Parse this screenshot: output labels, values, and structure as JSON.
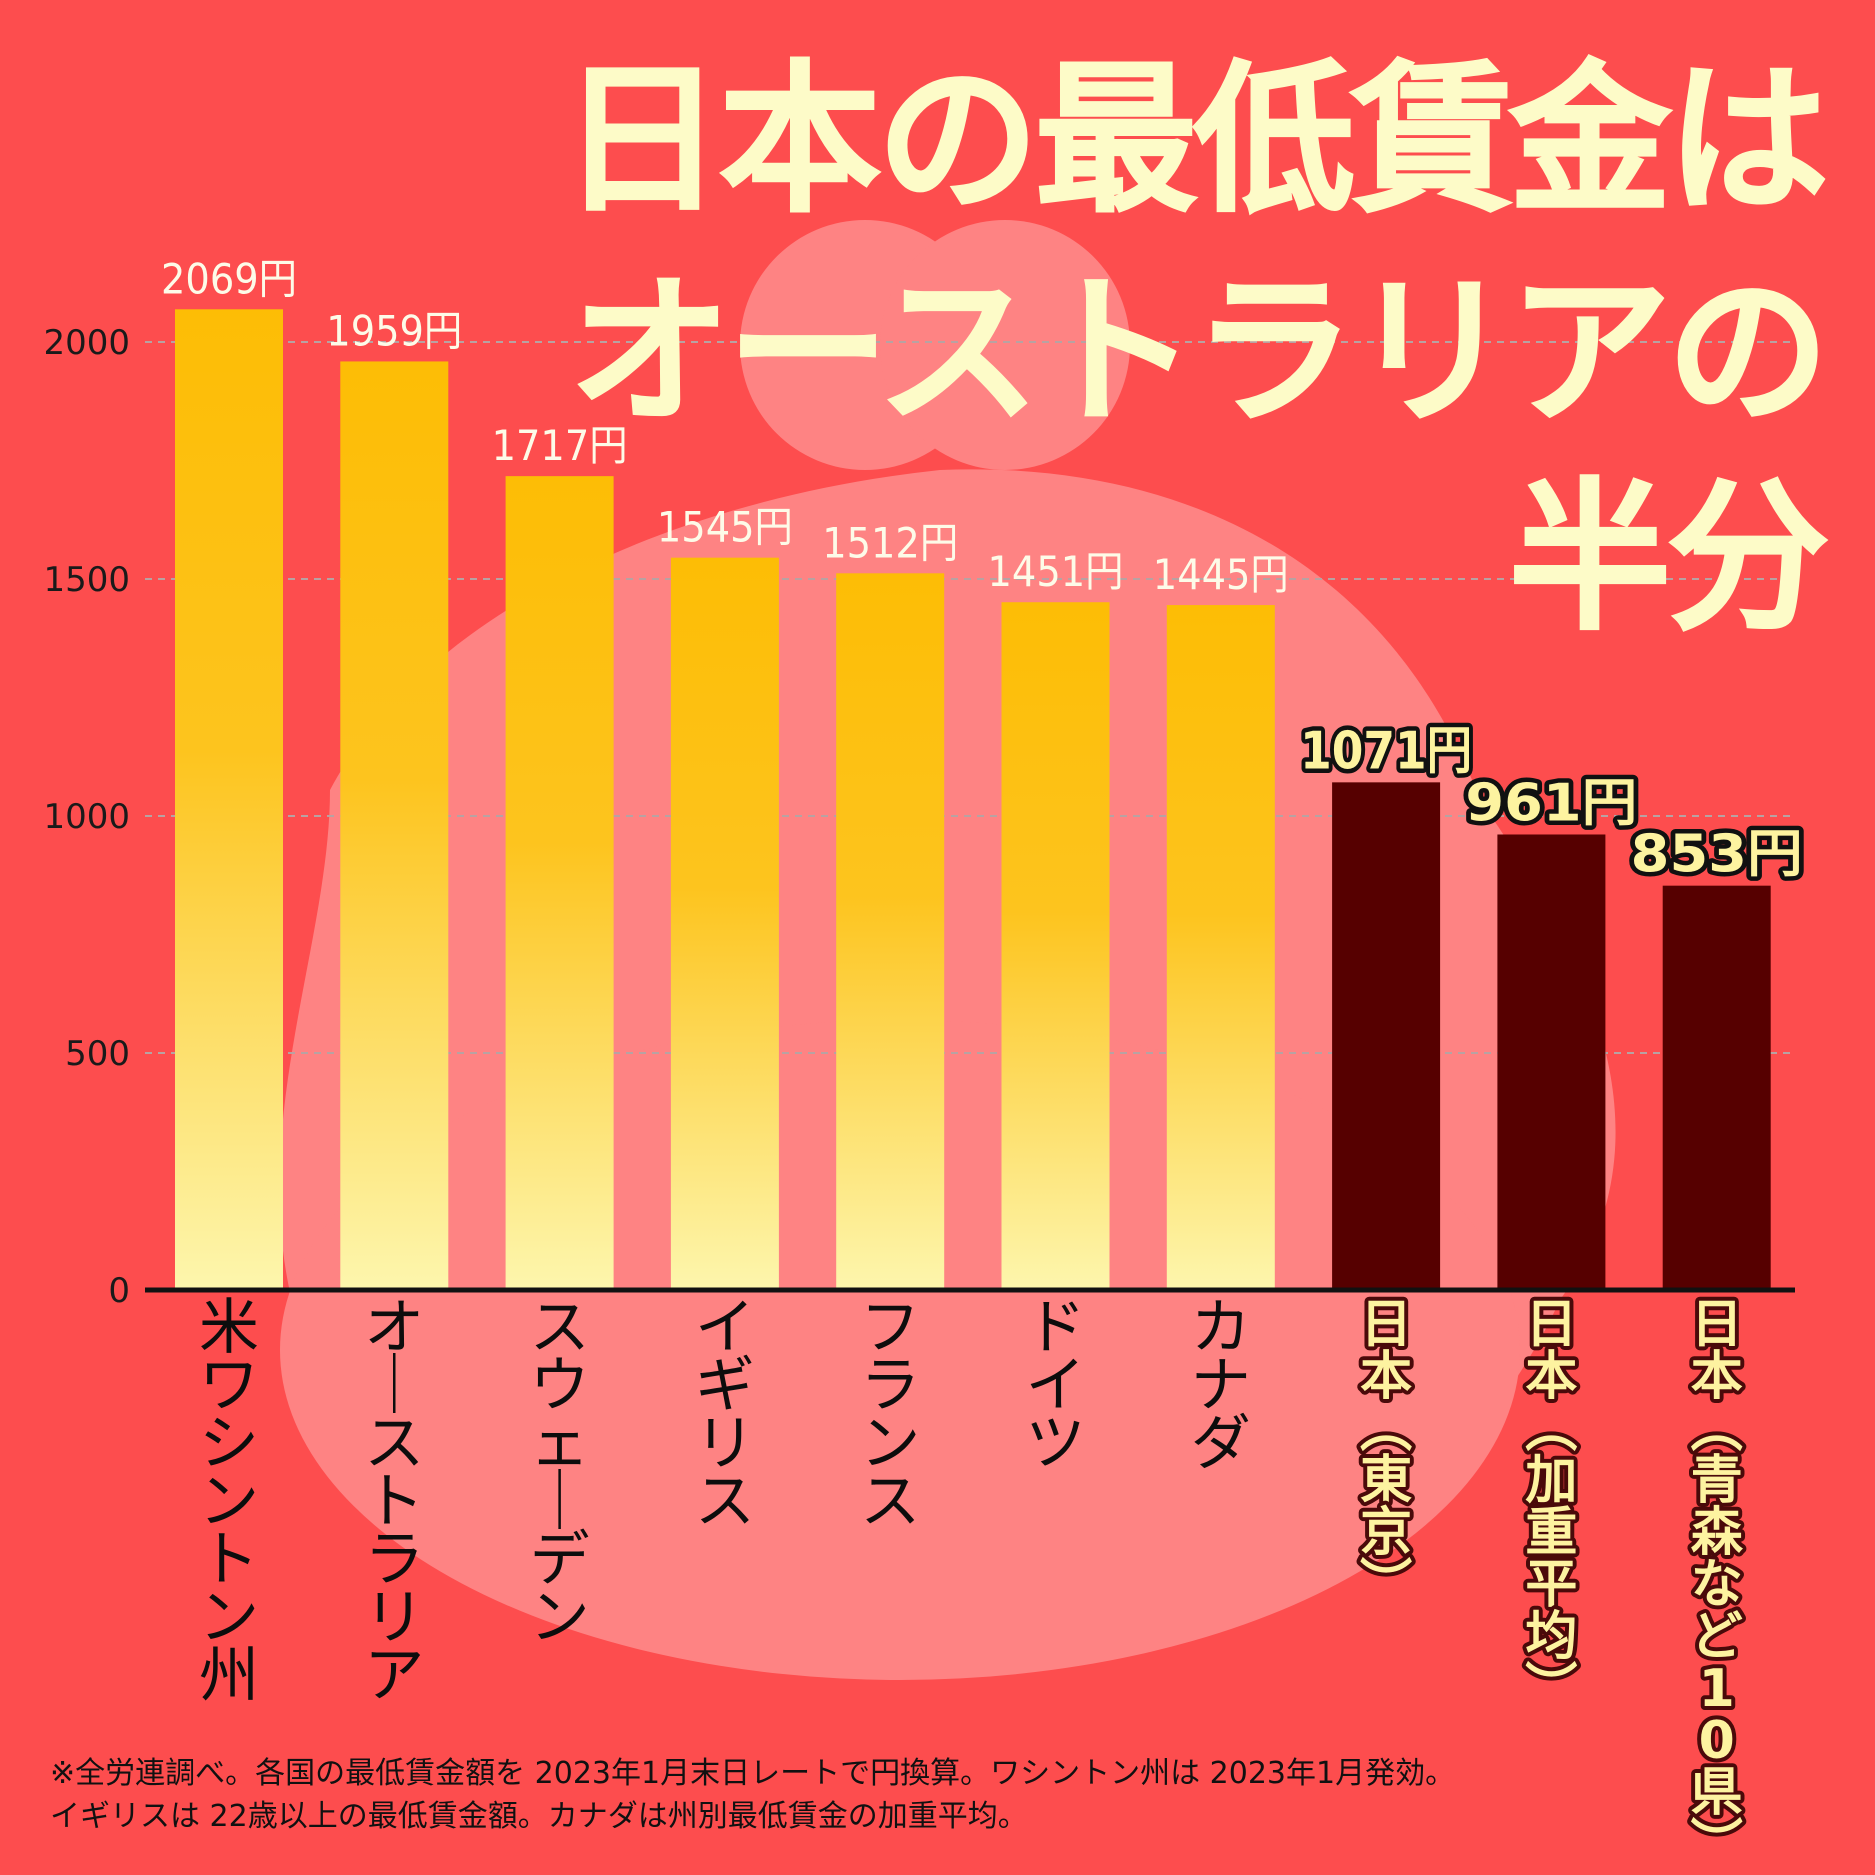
{
  "title": {
    "line1": "日本の最低賃金は",
    "line2": "オーストラリアの",
    "line3": "半分"
  },
  "colors": {
    "background": "#fd4d4e",
    "bar_top": "#fdbd05",
    "bar_bottom": "#fdf6ad",
    "japan_bar": "#560000",
    "japan_label_fill": "#fdf3a0",
    "title": "#fdfbc8"
  },
  "chart_data": {
    "type": "bar",
    "unit_suffix": "円",
    "categories": [
      "米ワシントン州",
      "オーストラリア",
      "スウェーデン",
      "イギリス",
      "フランス",
      "ドイツ",
      "カナダ",
      "日本(東京)",
      "日本(加重平均)",
      "日本(青森など10県)"
    ],
    "values": [
      2069,
      1959,
      1717,
      1545,
      1512,
      1451,
      1445,
      1071,
      961,
      853
    ],
    "highlight": [
      false,
      false,
      false,
      false,
      false,
      false,
      false,
      true,
      true,
      true
    ],
    "ylim": [
      0,
      2000
    ],
    "yticks": [
      0,
      500,
      1000,
      1500,
      2000
    ],
    "grid": true
  },
  "footnote": {
    "line1": "※全労連調べ。各国の最低賃金額を 2023年1月末日レートで円換算。ワシントン州は 2023年1月発効。",
    "line2": "イギリスは 22歳以上の最低賃金額。カナダは州別最低賃金の加重平均。"
  }
}
